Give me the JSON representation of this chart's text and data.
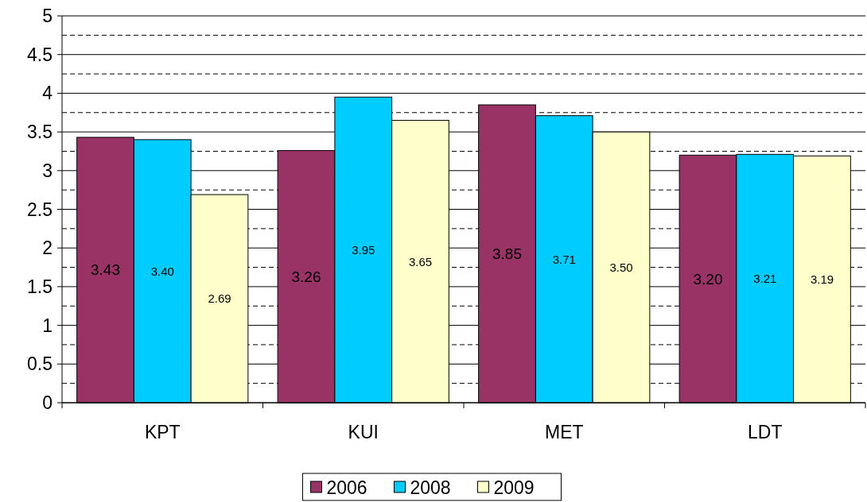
{
  "chart_data": {
    "type": "bar",
    "categories": [
      "KPT",
      "KUI",
      "MET",
      "LDT"
    ],
    "series": [
      {
        "name": "2006",
        "color": "#993366",
        "values": [
          3.43,
          3.26,
          3.85,
          3.2
        ],
        "value_labels": [
          "3.43",
          "3.26",
          "3.85",
          "3.20"
        ]
      },
      {
        "name": "2008",
        "color": "#00ccff",
        "values": [
          3.4,
          3.95,
          3.71,
          3.21
        ],
        "value_labels": [
          "3.40",
          "3.95",
          "3.71",
          "3.21"
        ]
      },
      {
        "name": "2009",
        "color": "#ffffcc",
        "values": [
          2.69,
          3.65,
          3.5,
          3.19
        ],
        "value_labels": [
          "2.69",
          "3.65",
          "3.50",
          "3.19"
        ]
      }
    ],
    "ylim": [
      0,
      5
    ],
    "yticks": [
      0,
      {
        "value": 0.25,
        "label": null
      },
      0.5,
      {
        "value": 0.75,
        "label": null
      },
      1,
      {
        "value": 1.25,
        "label": null
      },
      1.5,
      {
        "value": 1.75,
        "label": null
      },
      2,
      {
        "value": 2.25,
        "label": null
      },
      2.5,
      {
        "value": 2.75,
        "label": null
      },
      3,
      {
        "value": 3.25,
        "label": null
      },
      3.5,
      {
        "value": 3.75,
        "label": null
      },
      4,
      {
        "value": 4.25,
        "label": null
      },
      4.5,
      {
        "value": 4.75,
        "label": null
      },
      5
    ],
    "grid": "y",
    "legend": "bottom"
  }
}
